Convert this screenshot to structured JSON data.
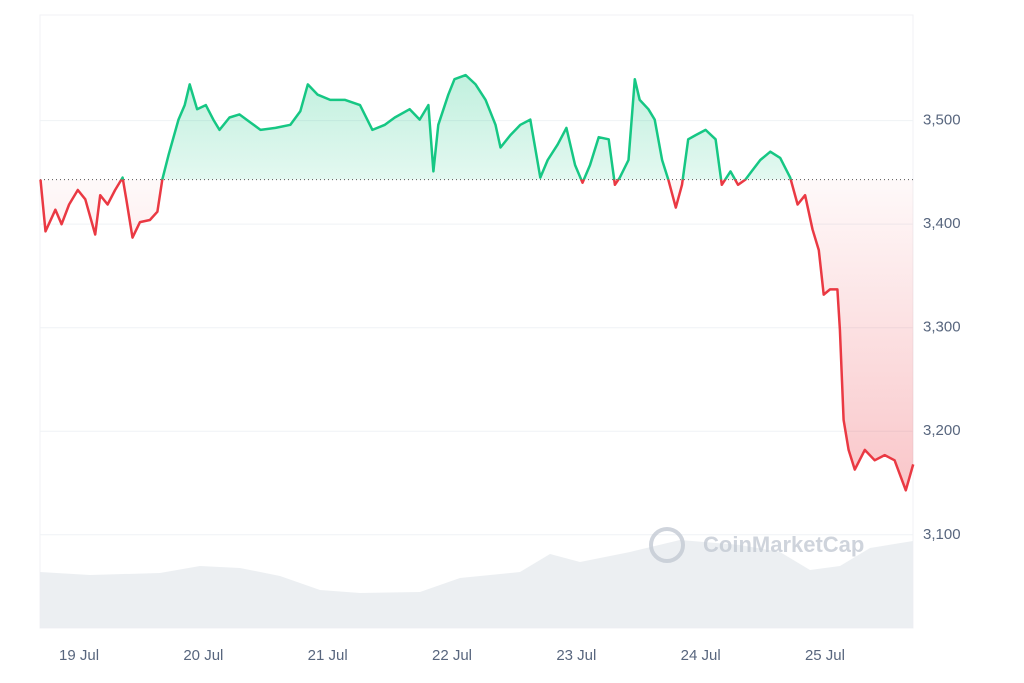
{
  "chart_data": {
    "type": "line",
    "watermark": "CoinMarketCap",
    "x": [
      18.69,
      18.73,
      18.81,
      18.86,
      18.92,
      18.99,
      19.05,
      19.13,
      19.17,
      19.23,
      19.29,
      19.35,
      19.38,
      19.43,
      19.49,
      19.57,
      19.63,
      19.67,
      19.72,
      19.8,
      19.85,
      19.89,
      19.95,
      20.02,
      20.08,
      20.13,
      20.21,
      20.29,
      20.37,
      20.46,
      20.58,
      20.7,
      20.78,
      20.84,
      20.92,
      21.02,
      21.14,
      21.26,
      21.36,
      21.46,
      21.54,
      21.66,
      21.74,
      21.81,
      21.85,
      21.89,
      21.97,
      22.02,
      22.11,
      22.19,
      22.27,
      22.35,
      22.39,
      22.47,
      22.55,
      22.63,
      22.71,
      22.77,
      22.85,
      22.92,
      22.99,
      23.05,
      23.11,
      23.18,
      23.26,
      23.31,
      23.35,
      23.42,
      23.47,
      23.51,
      23.58,
      23.63,
      23.69,
      23.74,
      23.8,
      23.85,
      23.9,
      23.96,
      24.04,
      24.12,
      24.17,
      24.24,
      24.3,
      24.36,
      24.41,
      24.48,
      24.56,
      24.64,
      24.72,
      24.78,
      24.84,
      24.9,
      24.95,
      24.99,
      25.04,
      25.1,
      25.12,
      25.15,
      25.19,
      25.24,
      25.32,
      25.4,
      25.48,
      25.56,
      25.65,
      25.71
    ],
    "values": [
      3443,
      3393,
      3414,
      3400,
      3419,
      3433,
      3424,
      3390,
      3428,
      3419,
      3433,
      3445,
      3424,
      3387,
      3402,
      3404,
      3412,
      3443,
      3467,
      3501,
      3515,
      3535,
      3511,
      3515,
      3501,
      3491,
      3503,
      3506,
      3499,
      3491,
      3493,
      3496,
      3509,
      3535,
      3525,
      3520,
      3520,
      3515,
      3491,
      3496,
      3503,
      3511,
      3501,
      3515,
      3451,
      3496,
      3525,
      3540,
      3544,
      3535,
      3520,
      3496,
      3474,
      3486,
      3496,
      3501,
      3445,
      3462,
      3477,
      3493,
      3457,
      3440,
      3457,
      3484,
      3482,
      3438,
      3445,
      3462,
      3540,
      3520,
      3511,
      3501,
      3462,
      3443,
      3416,
      3438,
      3482,
      3486,
      3491,
      3482,
      3438,
      3451,
      3438,
      3443,
      3451,
      3462,
      3470,
      3464,
      3445,
      3419,
      3428,
      3395,
      3375,
      3332,
      3337,
      3337,
      3298,
      3211,
      3182,
      3163,
      3182,
      3172,
      3177,
      3172,
      3143,
      3168
    ],
    "baseline": 3443,
    "up_color": "#16c784",
    "down_color": "#ea3943",
    "xlim": [
      18.686,
      25.708
    ],
    "xticks": [
      {
        "value": 19,
        "label": "19 Jul"
      },
      {
        "value": 20,
        "label": "20 Jul"
      },
      {
        "value": 21,
        "label": "21 Jul"
      },
      {
        "value": 22,
        "label": "22 Jul"
      },
      {
        "value": 23,
        "label": "23 Jul"
      },
      {
        "value": 24,
        "label": "24 Jul"
      },
      {
        "value": 25,
        "label": "25 Jul"
      }
    ],
    "ylim": [
      3010,
      3602
    ],
    "yticks": [
      {
        "value": 3100,
        "label": "3,100"
      },
      {
        "value": 3200,
        "label": "3,200"
      },
      {
        "value": 3300,
        "label": "3,300"
      },
      {
        "value": 3400,
        "label": "3,400"
      },
      {
        "value": 3500,
        "label": "3,500"
      }
    ],
    "grid": true
  }
}
